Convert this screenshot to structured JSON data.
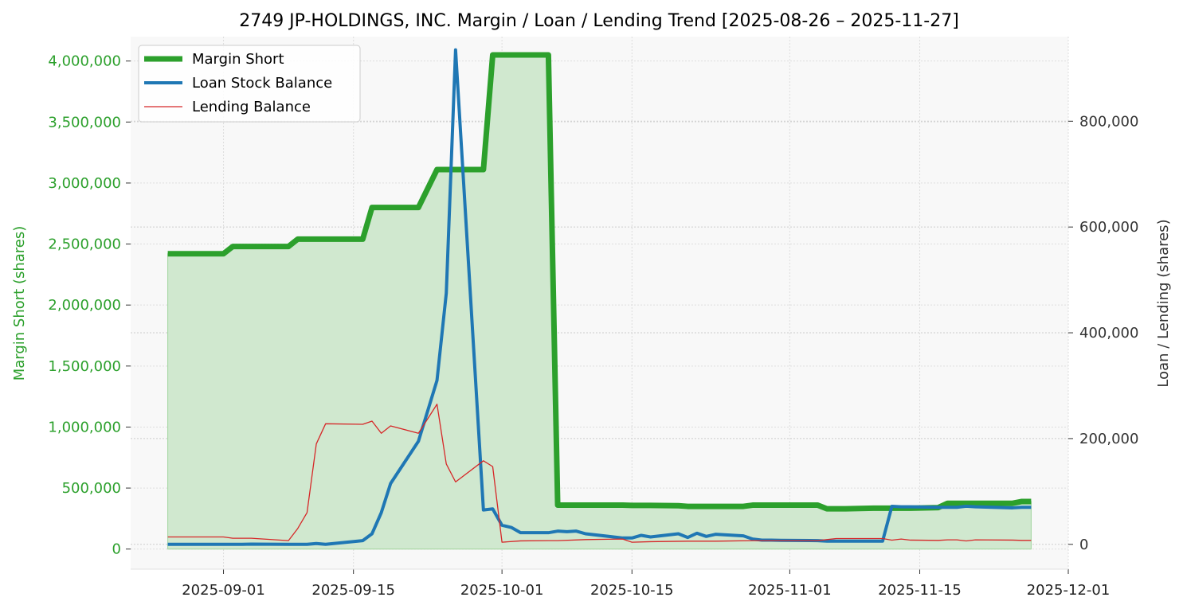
{
  "chart_data": {
    "type": "line",
    "title": "2749 JP-HOLDINGS, INC. Margin / Loan / Lending Trend [2025-08-26 – 2025-11-27]",
    "ylabel_left": "Margin Short (shares)",
    "ylabel_right": "Loan / Lending (shares)",
    "xlabel": "",
    "xlim": [
      "2025-08-22",
      "2025-12-01"
    ],
    "ylim_left": [
      -165000,
      4200000
    ],
    "ylim_right": [
      -47000,
      960000
    ],
    "x_ticks": [
      "2025-09-01",
      "2025-09-15",
      "2025-10-01",
      "2025-10-15",
      "2025-11-01",
      "2025-11-15",
      "2025-12-01"
    ],
    "y_left_ticks": [
      0,
      500000,
      1000000,
      1500000,
      2000000,
      2500000,
      3000000,
      3500000,
      4000000
    ],
    "y_left_tick_labels": [
      "0",
      "500,000",
      "1,000,000",
      "1,500,000",
      "2,000,000",
      "2,500,000",
      "3,000,000",
      "3,500,000",
      "4,000,000"
    ],
    "y_right_ticks": [
      0,
      200000,
      400000,
      600000,
      800000
    ],
    "y_right_tick_labels": [
      "0",
      "200,000",
      "400,000",
      "600,000",
      "800,000"
    ],
    "grid": true,
    "legend_position": "top-left",
    "colors": {
      "margin": "#2ca02c",
      "margin_fill": "#d0e8cf",
      "loan": "#1f77b4",
      "lending": "#d62728",
      "left_axis": "#2ca02c",
      "right_axis": "#333333",
      "plot_bg": "#f8f8f8"
    },
    "series": [
      {
        "name": "Margin Short",
        "axis": "left",
        "points": [
          [
            "2025-08-26",
            2420000
          ],
          [
            "2025-08-27",
            2420000
          ],
          [
            "2025-08-28",
            2420000
          ],
          [
            "2025-08-29",
            2420000
          ],
          [
            "2025-09-01",
            2420000
          ],
          [
            "2025-09-02",
            2480000
          ],
          [
            "2025-09-03",
            2480000
          ],
          [
            "2025-09-04",
            2480000
          ],
          [
            "2025-09-05",
            2480000
          ],
          [
            "2025-09-08",
            2480000
          ],
          [
            "2025-09-09",
            2540000
          ],
          [
            "2025-09-10",
            2540000
          ],
          [
            "2025-09-11",
            2540000
          ],
          [
            "2025-09-12",
            2540000
          ],
          [
            "2025-09-16",
            2540000
          ],
          [
            "2025-09-17",
            2800000
          ],
          [
            "2025-09-18",
            2800000
          ],
          [
            "2025-09-19",
            2800000
          ],
          [
            "2025-09-22",
            2800000
          ],
          [
            "2025-09-24",
            3110000
          ],
          [
            "2025-09-25",
            3110000
          ],
          [
            "2025-09-26",
            3110000
          ],
          [
            "2025-09-29",
            3110000
          ],
          [
            "2025-09-30",
            4050000
          ],
          [
            "2025-10-01",
            4050000
          ],
          [
            "2025-10-02",
            4050000
          ],
          [
            "2025-10-03",
            4050000
          ],
          [
            "2025-10-06",
            4050000
          ],
          [
            "2025-10-07",
            360000
          ],
          [
            "2025-10-08",
            360000
          ],
          [
            "2025-10-09",
            360000
          ],
          [
            "2025-10-10",
            360000
          ],
          [
            "2025-10-14",
            360000
          ],
          [
            "2025-10-15",
            358000
          ],
          [
            "2025-10-16",
            358000
          ],
          [
            "2025-10-17",
            358000
          ],
          [
            "2025-10-20",
            355000
          ],
          [
            "2025-10-21",
            350000
          ],
          [
            "2025-10-22",
            350000
          ],
          [
            "2025-10-23",
            350000
          ],
          [
            "2025-10-24",
            350000
          ],
          [
            "2025-10-27",
            350000
          ],
          [
            "2025-10-28",
            360000
          ],
          [
            "2025-10-29",
            360000
          ],
          [
            "2025-10-30",
            360000
          ],
          [
            "2025-10-31",
            360000
          ],
          [
            "2025-11-04",
            360000
          ],
          [
            "2025-11-05",
            330000
          ],
          [
            "2025-11-06",
            330000
          ],
          [
            "2025-11-07",
            330000
          ],
          [
            "2025-11-10",
            335000
          ],
          [
            "2025-11-11",
            335000
          ],
          [
            "2025-11-12",
            335000
          ],
          [
            "2025-11-13",
            335000
          ],
          [
            "2025-11-14",
            335000
          ],
          [
            "2025-11-17",
            340000
          ],
          [
            "2025-11-18",
            375000
          ],
          [
            "2025-11-19",
            375000
          ],
          [
            "2025-11-20",
            375000
          ],
          [
            "2025-11-21",
            375000
          ],
          [
            "2025-11-25",
            375000
          ],
          [
            "2025-11-26",
            390000
          ],
          [
            "2025-11-27",
            390000
          ]
        ]
      },
      {
        "name": "Loan Stock Balance",
        "axis": "right",
        "points": [
          [
            "2025-08-26",
            0
          ],
          [
            "2025-09-01",
            0
          ],
          [
            "2025-09-03",
            0
          ],
          [
            "2025-09-04",
            500
          ],
          [
            "2025-09-08",
            0
          ],
          [
            "2025-09-09",
            0
          ],
          [
            "2025-09-10",
            0
          ],
          [
            "2025-09-11",
            1500
          ],
          [
            "2025-09-12",
            0
          ],
          [
            "2025-09-16",
            7000
          ],
          [
            "2025-09-17",
            20000
          ],
          [
            "2025-09-18",
            60000
          ],
          [
            "2025-09-19",
            115000
          ],
          [
            "2025-09-22",
            195000
          ],
          [
            "2025-09-24",
            310000
          ],
          [
            "2025-09-25",
            475000
          ],
          [
            "2025-09-26",
            935000
          ],
          [
            "2025-09-29",
            65000
          ],
          [
            "2025-09-30",
            67000
          ],
          [
            "2025-10-01",
            36000
          ],
          [
            "2025-10-02",
            32000
          ],
          [
            "2025-10-03",
            22000
          ],
          [
            "2025-10-06",
            22000
          ],
          [
            "2025-10-07",
            25000
          ],
          [
            "2025-10-08",
            24000
          ],
          [
            "2025-10-09",
            25000
          ],
          [
            "2025-10-10",
            20000
          ],
          [
            "2025-10-14",
            12000
          ],
          [
            "2025-10-15",
            12000
          ],
          [
            "2025-10-16",
            17000
          ],
          [
            "2025-10-17",
            14000
          ],
          [
            "2025-10-20",
            20000
          ],
          [
            "2025-10-21",
            13000
          ],
          [
            "2025-10-22",
            21000
          ],
          [
            "2025-10-23",
            15000
          ],
          [
            "2025-10-24",
            19000
          ],
          [
            "2025-10-27",
            16000
          ],
          [
            "2025-10-28",
            10000
          ],
          [
            "2025-10-29",
            8000
          ],
          [
            "2025-10-30",
            8000
          ],
          [
            "2025-10-31",
            7500
          ],
          [
            "2025-11-04",
            7000
          ],
          [
            "2025-11-05",
            6000
          ],
          [
            "2025-11-06",
            6000
          ],
          [
            "2025-11-07",
            6000
          ],
          [
            "2025-11-10",
            6000
          ],
          [
            "2025-11-11",
            6000
          ],
          [
            "2025-11-12",
            72000
          ],
          [
            "2025-11-13",
            71000
          ],
          [
            "2025-11-14",
            71000
          ],
          [
            "2025-11-17",
            70000
          ],
          [
            "2025-11-18",
            70000
          ],
          [
            "2025-11-19",
            70000
          ],
          [
            "2025-11-20",
            72000
          ],
          [
            "2025-11-21",
            71000
          ],
          [
            "2025-11-25",
            69000
          ],
          [
            "2025-11-26",
            70000
          ],
          [
            "2025-11-27",
            70000
          ]
        ]
      },
      {
        "name": "Lending Balance",
        "axis": "right",
        "points": [
          [
            "2025-08-26",
            14000
          ],
          [
            "2025-09-01",
            14000
          ],
          [
            "2025-09-02",
            11500
          ],
          [
            "2025-09-03",
            11500
          ],
          [
            "2025-09-04",
            11500
          ],
          [
            "2025-09-08",
            7000
          ],
          [
            "2025-09-09",
            30000
          ],
          [
            "2025-09-10",
            60000
          ],
          [
            "2025-09-11",
            190000
          ],
          [
            "2025-09-12",
            228000
          ],
          [
            "2025-09-16",
            227000
          ],
          [
            "2025-09-17",
            233000
          ],
          [
            "2025-09-18",
            210000
          ],
          [
            "2025-09-19",
            224000
          ],
          [
            "2025-09-22",
            210000
          ],
          [
            "2025-09-24",
            265000
          ],
          [
            "2025-09-25",
            152000
          ],
          [
            "2025-09-26",
            118000
          ],
          [
            "2025-09-29",
            158000
          ],
          [
            "2025-09-30",
            147000
          ],
          [
            "2025-10-01",
            4000
          ],
          [
            "2025-10-03",
            6500
          ],
          [
            "2025-10-06",
            7000
          ],
          [
            "2025-10-07",
            7000
          ],
          [
            "2025-10-10",
            9000
          ],
          [
            "2025-10-14",
            10000
          ],
          [
            "2025-10-15",
            4000
          ],
          [
            "2025-10-17",
            5000
          ],
          [
            "2025-10-21",
            6000
          ],
          [
            "2025-10-24",
            6000
          ],
          [
            "2025-10-28",
            7000
          ],
          [
            "2025-10-31",
            7000
          ],
          [
            "2025-11-04",
            7000
          ],
          [
            "2025-11-05",
            9000
          ],
          [
            "2025-11-06",
            11000
          ],
          [
            "2025-11-07",
            11000
          ],
          [
            "2025-11-10",
            11000
          ],
          [
            "2025-11-11",
            11000
          ],
          [
            "2025-11-12",
            8000
          ],
          [
            "2025-11-13",
            10000
          ],
          [
            "2025-11-14",
            8000
          ],
          [
            "2025-11-17",
            7500
          ],
          [
            "2025-11-18",
            8500
          ],
          [
            "2025-11-19",
            8500
          ],
          [
            "2025-11-20",
            6500
          ],
          [
            "2025-11-21",
            8500
          ],
          [
            "2025-11-25",
            8000
          ],
          [
            "2025-11-26",
            7500
          ],
          [
            "2025-11-27",
            7500
          ]
        ]
      }
    ]
  }
}
